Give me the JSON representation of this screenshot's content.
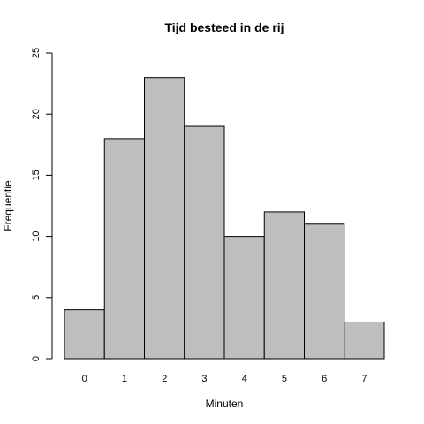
{
  "chart_data": {
    "type": "bar",
    "title": "Tijd besteed in de rij",
    "xlabel": "Minuten",
    "ylabel": "Frequentie",
    "categories": [
      "0",
      "1",
      "2",
      "3",
      "4",
      "5",
      "6",
      "7"
    ],
    "values": [
      4,
      18,
      23,
      19,
      10,
      12,
      11,
      3
    ],
    "ylim": [
      0,
      25
    ],
    "yticks": [
      0,
      5,
      10,
      15,
      20,
      25
    ],
    "bar_color": "#bebebe",
    "grid": false,
    "legend": "none"
  }
}
